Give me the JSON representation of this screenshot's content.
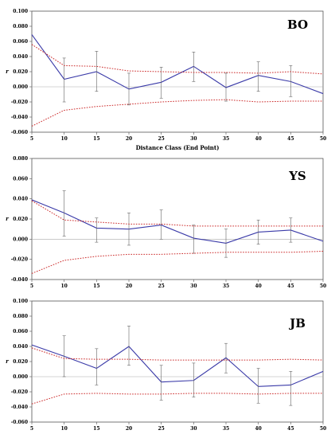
{
  "chart_data": [
    {
      "type": "line",
      "title": "BO",
      "xlabel": "Distance Class (End Point)",
      "ylabel": "r",
      "x": [
        5,
        10,
        15,
        20,
        25,
        30,
        35,
        40,
        45,
        50
      ],
      "xticks": [
        "5",
        "10",
        "15",
        "20",
        "25",
        "30",
        "35",
        "40",
        "45",
        "50"
      ],
      "ylim": [
        -0.06,
        0.1
      ],
      "yticks": [
        "-0.060",
        "-0.040",
        "-0.020",
        "0.000",
        "0.020",
        "0.040",
        "0.060",
        "0.080",
        "0.100"
      ],
      "grid": false,
      "series": [
        {
          "values": [
            0.069,
            0.01,
            0.02,
            -0.003,
            0.006,
            0.027,
            -0.001,
            0.015,
            0.007,
            -0.009
          ],
          "color": "#3a3aa8",
          "error_bars": [
            [
              0.069,
              0.069
            ],
            [
              -0.02,
              0.038
            ],
            [
              -0.006,
              0.047
            ],
            [
              -0.024,
              0.018
            ],
            [
              -0.015,
              0.026
            ],
            [
              0.007,
              0.046
            ],
            [
              -0.019,
              0.018
            ],
            [
              -0.006,
              0.033
            ],
            [
              -0.013,
              0.028
            ],
            [
              -0.009,
              -0.009
            ]
          ]
        },
        {
          "values": [
            0.056,
            0.028,
            0.027,
            0.021,
            0.02,
            0.019,
            0.019,
            0.018,
            0.02,
            0.017
          ],
          "color": "#cc2a2a",
          "dash": true
        },
        {
          "values": [
            -0.052,
            -0.031,
            -0.026,
            -0.023,
            -0.02,
            -0.018,
            -0.017,
            -0.02,
            -0.019,
            -0.019
          ],
          "color": "#cc2a2a",
          "dash": true
        }
      ]
    },
    {
      "type": "line",
      "title": "YS",
      "xlabel": "",
      "ylabel": "r",
      "x": [
        5,
        10,
        15,
        20,
        25,
        30,
        35,
        40,
        45,
        50
      ],
      "xticks": [
        "5",
        "10",
        "15",
        "20",
        "25",
        "30",
        "35",
        "40",
        "45",
        "50"
      ],
      "ylim": [
        -0.04,
        0.08
      ],
      "yticks": [
        "-0.040",
        "-0.020",
        "0.000",
        "0.020",
        "0.040",
        "0.060",
        "0.080"
      ],
      "grid": false,
      "series": [
        {
          "values": [
            0.039,
            0.026,
            0.011,
            0.01,
            0.014,
            0.001,
            -0.004,
            0.007,
            0.009,
            -0.002
          ],
          "color": "#3a3aa8",
          "error_bars": [
            [
              0.039,
              0.039
            ],
            [
              0.003,
              0.048
            ],
            [
              -0.003,
              0.021
            ],
            [
              -0.006,
              0.026
            ],
            [
              0.0,
              0.029
            ],
            [
              -0.014,
              0.014
            ],
            [
              -0.018,
              0.01
            ],
            [
              -0.005,
              0.019
            ],
            [
              -0.003,
              0.021
            ],
            [
              -0.002,
              -0.002
            ]
          ]
        },
        {
          "values": [
            0.038,
            0.019,
            0.017,
            0.015,
            0.015,
            0.013,
            0.013,
            0.013,
            0.013,
            0.013
          ],
          "color": "#cc2a2a",
          "dash": true
        },
        {
          "values": [
            -0.034,
            -0.021,
            -0.017,
            -0.015,
            -0.015,
            -0.014,
            -0.013,
            -0.013,
            -0.013,
            -0.012
          ],
          "color": "#cc2a2a",
          "dash": true
        }
      ]
    },
    {
      "type": "line",
      "title": "JB",
      "xlabel": "",
      "ylabel": "r",
      "x": [
        5,
        10,
        15,
        20,
        25,
        30,
        35,
        40,
        45,
        50
      ],
      "xticks": [
        "5",
        "10",
        "15",
        "20",
        "25",
        "30",
        "35",
        "40",
        "45",
        "50"
      ],
      "ylim": [
        -0.06,
        0.1
      ],
      "yticks": [
        "-0.060",
        "-0.040",
        "-0.020",
        "0.000",
        "0.020",
        "0.040",
        "0.060",
        "0.080",
        "0.100"
      ],
      "grid": false,
      "series": [
        {
          "values": [
            0.042,
            0.027,
            0.011,
            0.04,
            -0.007,
            -0.005,
            0.025,
            -0.013,
            -0.011,
            0.007
          ],
          "color": "#3a3aa8",
          "error_bars": [
            [
              0.042,
              0.042
            ],
            [
              0.0,
              0.054
            ],
            [
              -0.011,
              0.037
            ],
            [
              0.015,
              0.067
            ],
            [
              -0.031,
              0.015
            ],
            [
              -0.027,
              0.018
            ],
            [
              0.005,
              0.044
            ],
            [
              -0.035,
              0.011
            ],
            [
              -0.038,
              0.007
            ],
            [
              0.007,
              0.007
            ]
          ]
        },
        {
          "values": [
            0.038,
            0.024,
            0.023,
            0.023,
            0.022,
            0.022,
            0.022,
            0.022,
            0.023,
            0.022
          ],
          "color": "#cc2a2a",
          "dash": true
        },
        {
          "values": [
            -0.036,
            -0.023,
            -0.022,
            -0.023,
            -0.023,
            -0.022,
            -0.022,
            -0.023,
            -0.022,
            -0.022
          ],
          "color": "#cc2a2a",
          "dash": true
        }
      ]
    }
  ]
}
